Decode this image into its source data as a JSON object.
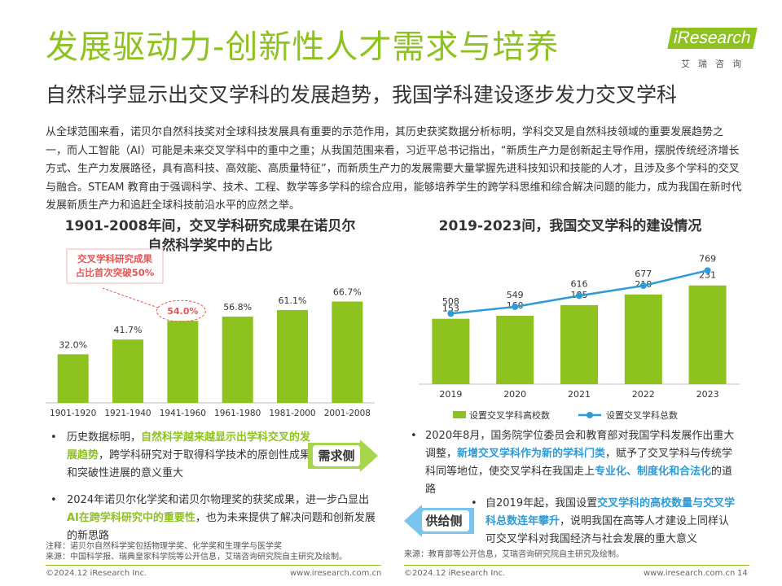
{
  "header": {
    "title": "发展驱动力-创新性人才需求与培养",
    "subtitle": "自然科学显示出交叉学科的发展趋势，我国学科建设逐步发力交叉学科",
    "logo_brand": "iResearch",
    "logo_cn": "艾瑞咨询"
  },
  "intro": "从全球范围来看，诺贝尔自然科技奖对全球科技发展具有重要的示范作用，其历史获奖数据分析标明，学科交叉是自然科技领域的重要发展趋势之一，而人工智能（AI）可能是未来交叉学科中的重中之重；从我国范围来看，习近平总书记指出，“新质生产力是创新起主导作用，摆脱传统经济增长方式、生产力发展路径，具有高科技、高效能、高质量特征”，而新质生产力的发展需要大量掌握先进科技知识和技能的人才，且涉及多个学科的交叉与融合。STEAM 教育由于强调科学、技术、工程、数学等多学科的综合应用，能够培养学生的跨学科思维和综合解决问题的能力，成为我国在新时代发展新质生产力和追赶全球科技前沿水平的应然之举。",
  "colors": {
    "green": "#8dc21f",
    "blue": "#2e9bd6",
    "red": "#e95454",
    "tag_green": "#a7d64c",
    "tag_blue": "#7ac5ee"
  },
  "chart_data": [
    {
      "type": "bar",
      "title_line1": "1901-2008年间，交叉学科研究成果在诺贝尔",
      "title_line2": "自然科学奖中的占比",
      "categories": [
        "1901-1920",
        "1921-1940",
        "1941-1960",
        "1961-1980",
        "1981-2000",
        "2001-2008"
      ],
      "values": [
        32.0,
        41.7,
        54.0,
        56.8,
        61.1,
        66.7
      ],
      "labels": [
        "32.0%",
        "41.7%",
        "54.0%",
        "56.8%",
        "61.1%",
        "66.7%"
      ],
      "ylim": [
        0,
        75
      ],
      "annotation_line1": "交叉学科研究成果",
      "annotation_line2": "占比首次突破50%"
    },
    {
      "type": "bar+line",
      "title": "2019-2023间，我国交叉学科的建设情况",
      "categories": [
        "2019",
        "2020",
        "2021",
        "2022",
        "2023"
      ],
      "series": [
        {
          "name": "设置交叉学科高校数",
          "type": "bar",
          "values": [
            153,
            160,
            185,
            210,
            231
          ]
        },
        {
          "name": "设置交叉学科总数",
          "type": "line",
          "values": [
            508,
            549,
            616,
            677,
            769
          ]
        }
      ],
      "bar_ylim": [
        0,
        400
      ],
      "line_ylim": [
        0,
        820
      ]
    }
  ],
  "left_bullets": {
    "b1_pre": "历史数据标明，",
    "b1_hl": "自然科学越来越显示出学科交叉的发展趋势",
    "b1_post": "，跨学科研究对于取得科学技术的原创性成果和突破性进展的意义重大",
    "b2_pre": "2024年诺贝尔化学奖和诺贝尔物理奖的获奖成果，进一步凸显出",
    "b2_hl": "AI在跨学科研究中的重要性",
    "b2_post": "，也为未来提供了解决问题和创新发展的新思路",
    "tag": "需求侧"
  },
  "right_bullets": {
    "b1_pre": "2020年8月，国务院学位委员会和教育部对我国学科发展作出重大调整，",
    "b1_hl": "新增交叉学科作为新的学科门类",
    "b1_mid": "，赋予了交叉学科与传统学科同等地位，使交叉学科在我国走上",
    "b1_hl2": "专业化、制度化和合法化",
    "b1_post": "的道路",
    "b2_pre": "自2019年起，我国设置",
    "b2_hl": "交叉学科的高校数量与交叉学科总数连年攀升",
    "b2_post": "，说明我国在高等人才建设上同样认可交叉学科对我国经济与社会发展的重大意义",
    "tag": "供给侧"
  },
  "notes": {
    "left_note": "注释：诺贝尔自然科学奖包括物理学奖、化学奖和生理学与医学奖",
    "left_source": "来源：中国科学报、瑞典皇家科学院等公开信息，艾瑞咨询研究院自主研究及绘制。",
    "right_source": "来源：教育部等公开信息，艾瑞咨询研究院自主研究及绘制。"
  },
  "footer": {
    "copyright_left": "©2024.12 iResearch Inc.",
    "url_left": "www.iresearch.com.cn",
    "copyright_right": "©2024.12 iResearch Inc.",
    "url_right": "www.iresearch.com.cn",
    "page": "14"
  }
}
